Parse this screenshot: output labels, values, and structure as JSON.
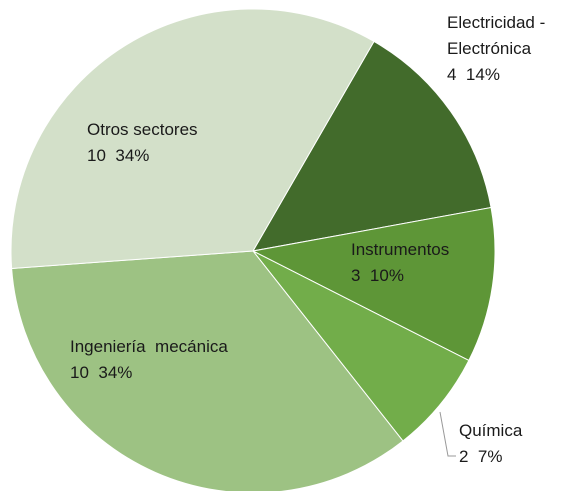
{
  "chart_data": {
    "type": "pie",
    "categories": [
      "Electricidad - Electrónica",
      "Instrumentos",
      "Química",
      "Ingeniería  mecánica",
      "Otros sectores"
    ],
    "values": [
      4,
      3,
      2,
      10,
      10
    ],
    "value_labels": [
      "14%",
      "10%",
      "7%",
      "34%",
      "34%"
    ],
    "colors": [
      "#426b2b",
      "#5e9637",
      "#72ad4a",
      "#9dc283",
      "#d3e0c9"
    ]
  }
}
